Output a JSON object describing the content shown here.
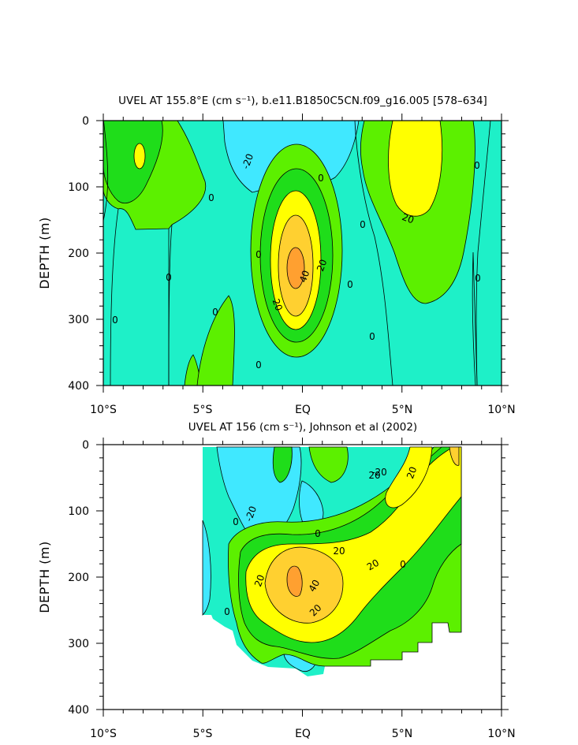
{
  "chart_data": [
    {
      "type": "heatmap",
      "title": "UVEL AT 155.8°E (cm s⁻¹), b.e11.B1850C5CN.f09_g16.005 [578–634]",
      "ylabel": "DEPTH (m)",
      "xlabel": "",
      "x_ticks": [
        "10°S",
        "5°S",
        "EQ",
        "5°N",
        "10°N"
      ],
      "y_ticks": [
        "0",
        "100",
        "200",
        "300",
        "400"
      ],
      "xlim": [
        -10,
        10
      ],
      "ylim": [
        400,
        0
      ],
      "contour_interval": 10,
      "contour_labels": [
        "-20",
        "0",
        "0",
        "0",
        "0",
        "0",
        "0",
        "0",
        "0",
        "0",
        "0",
        "0",
        "0",
        "20",
        "20",
        "20",
        "40"
      ],
      "levels": [
        {
          "range": "< -10",
          "color": "#40e8ff"
        },
        {
          "range": "-10 to 0",
          "color": "#1ef0c8"
        },
        {
          "range": "0 to 10",
          "color": "#5cf000"
        },
        {
          "range": "10 to 20",
          "color": "#1fdd1a"
        },
        {
          "range": "20 to 30",
          "color": "#ffff00"
        },
        {
          "range": "30 to 40",
          "color": "#ffd030"
        },
        {
          "range": "> 40",
          "color": "#ffa030"
        }
      ]
    },
    {
      "type": "heatmap",
      "title": "UVEL AT 156 (cm s⁻¹), Johnson et al (2002)",
      "ylabel": "DEPTH (m)",
      "xlabel": "",
      "x_ticks": [
        "10°S",
        "5°S",
        "EQ",
        "5°N",
        "10°N"
      ],
      "y_ticks": [
        "0",
        "100",
        "200",
        "300",
        "400"
      ],
      "xlim": [
        -10,
        10
      ],
      "ylim": [
        400,
        0
      ],
      "data_extent_x": [
        -5,
        8
      ],
      "contour_interval": 10,
      "contour_labels": [
        "-20",
        "-20",
        "0",
        "0",
        "0",
        "0",
        "20",
        "20",
        "20",
        "20",
        "20",
        "20",
        "40"
      ],
      "levels": [
        {
          "range": "< -10",
          "color": "#40e8ff"
        },
        {
          "range": "-10 to 0",
          "color": "#1ef0c8"
        },
        {
          "range": "0 to 10",
          "color": "#5cf000"
        },
        {
          "range": "10 to 20",
          "color": "#1fdd1a"
        },
        {
          "range": "20 to 30",
          "color": "#ffff00"
        },
        {
          "range": "30 to 40",
          "color": "#ffd030"
        },
        {
          "range": "> 40",
          "color": "#ffa030"
        }
      ]
    }
  ]
}
